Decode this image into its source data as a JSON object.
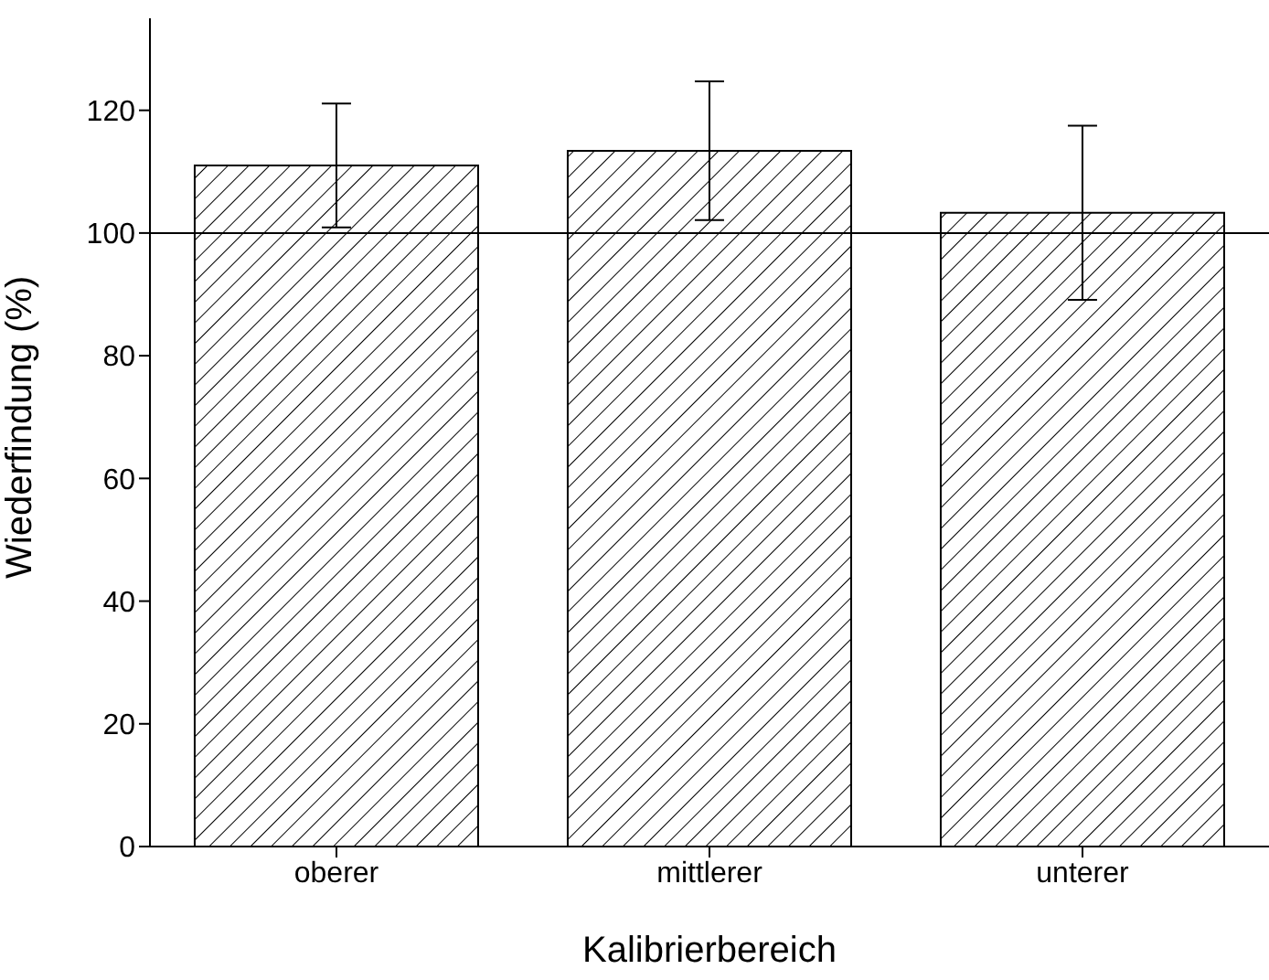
{
  "chart_data": {
    "type": "bar",
    "xlabel": "Kalibrierbereich",
    "ylabel": "Wiederfindung (%)",
    "categories": [
      "oberer",
      "mittlerer",
      "unterer"
    ],
    "values": [
      111.0,
      113.4,
      103.3
    ],
    "errors": [
      10.1,
      11.3,
      14.2
    ],
    "color": "#000000",
    "ylim": [
      0,
      135
    ],
    "yticks": [
      0,
      20,
      40,
      60,
      80,
      100,
      120
    ],
    "ref_lines": [
      {
        "axis": "y",
        "value": 100,
        "color": "#000000"
      }
    ],
    "grid": false,
    "legend": false
  }
}
